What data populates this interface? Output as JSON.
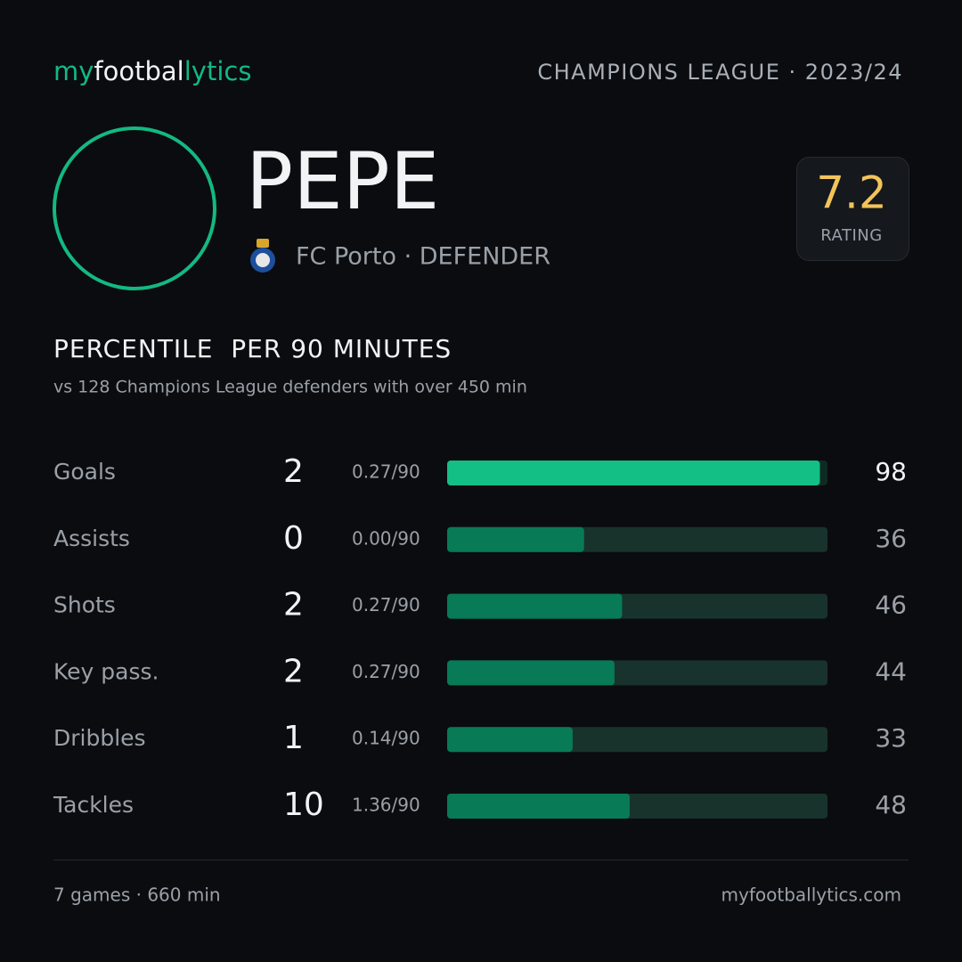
{
  "header": {
    "brand": [
      "my",
      "footbal",
      "lytics"
    ],
    "competition": "CHAMPIONS LEAGUE · 2023/24"
  },
  "player": {
    "name": "PEPE",
    "club_line": "FC Porto · DEFENDER",
    "rating": 7.2,
    "rating_label": "RATING"
  },
  "section": {
    "title": "PERCENTILE  PER 90 MINUTES",
    "subtitle": "vs 128 Champions League defenders with over 450 min"
  },
  "stats": {
    "xlim": [
      0,
      100
    ],
    "rows": [
      {
        "label": "Goals",
        "total": 2,
        "per90": "0.27/90",
        "percentile": 98,
        "highlight": true
      },
      {
        "label": "Assists",
        "total": 0,
        "per90": "0.00/90",
        "percentile": 36,
        "highlight": false
      },
      {
        "label": "Shots",
        "total": 2,
        "per90": "0.27/90",
        "percentile": 46,
        "highlight": false
      },
      {
        "label": "Key pass.",
        "total": 2,
        "per90": "0.27/90",
        "percentile": 44,
        "highlight": false
      },
      {
        "label": "Dribbles",
        "total": 1,
        "per90": "0.14/90",
        "percentile": 33,
        "highlight": false
      },
      {
        "label": "Tackles",
        "total": 10,
        "per90": "1.36/90",
        "percentile": 48,
        "highlight": false
      }
    ]
  },
  "footer": {
    "summary": "7 games · 660 min",
    "site": "myfootballytics.com"
  }
}
